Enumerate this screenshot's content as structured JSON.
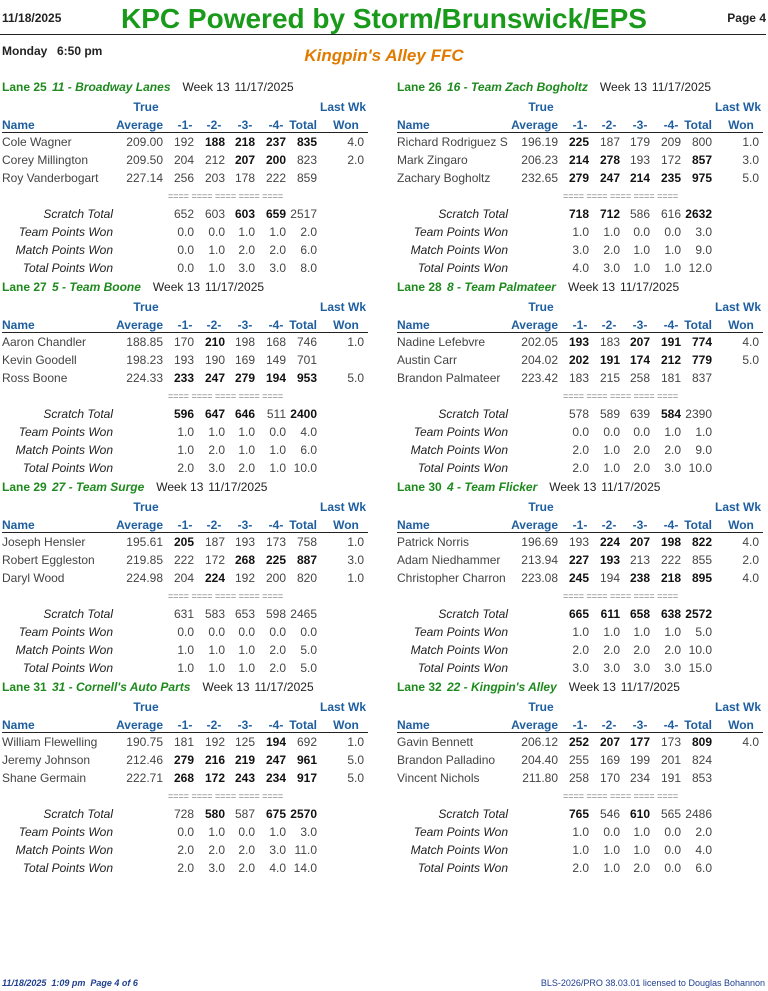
{
  "header": {
    "date": "11/18/2025",
    "title": "KPC Powered by Storm/Brunswick/EPS",
    "page": "Page 4",
    "day": "Monday",
    "time": "6:50 pm",
    "subtitle": "Kingpin's Alley FFC"
  },
  "column_headers": {
    "true": "True",
    "last_wk": "Last Wk",
    "name": "Name",
    "average": "Average",
    "g1": "-1-",
    "g2": "-2-",
    "g3": "-3-",
    "g4": "-4-",
    "total": "Total",
    "won": "Won"
  },
  "separator": "==== ==== ==== ==== ====",
  "summary_labels": [
    "Scratch Total",
    "Team Points Won",
    "Match Points Won",
    "Total Points Won"
  ],
  "matches": [
    {
      "lane": "Lane 25",
      "team": "11 - Broadway Lanes",
      "week": "Week 13",
      "date": "11/17/2025",
      "players": [
        {
          "cells": [
            "Cole Wagner",
            "209.00",
            "192",
            "188",
            "218",
            "237",
            "835",
            "4.0"
          ],
          "bold": [
            3,
            4,
            5,
            6
          ]
        },
        {
          "cells": [
            "Corey Millington",
            "209.50",
            "204",
            "212",
            "207",
            "200",
            "823",
            "2.0"
          ],
          "bold": [
            4,
            5
          ]
        },
        {
          "cells": [
            "Roy Vanderbogart",
            "227.14",
            "256",
            "203",
            "178",
            "222",
            "859"
          ],
          "bold": []
        }
      ],
      "summary": [
        [
          "652",
          "603",
          "603",
          "659",
          "2517"
        ],
        [
          "0.0",
          "0.0",
          "1.0",
          "1.0",
          "2.0"
        ],
        [
          "0.0",
          "1.0",
          "2.0",
          "2.0",
          "6.0"
        ],
        [
          "0.0",
          "1.0",
          "3.0",
          "3.0",
          "8.0"
        ]
      ],
      "summary_bold": [
        2,
        3
      ]
    },
    {
      "lane": "Lane 26",
      "team": "16 - Team Zach Bogholtz",
      "week": "Week 13",
      "date": "11/17/2025",
      "players": [
        {
          "cells": [
            "Richard Rodriguez S",
            "196.19",
            "225",
            "187",
            "179",
            "209",
            "800",
            "1.0"
          ],
          "bold": [
            2
          ]
        },
        {
          "cells": [
            "Mark Zingaro",
            "206.23",
            "214",
            "278",
            "193",
            "172",
            "857",
            "3.0"
          ],
          "bold": [
            2,
            3,
            6
          ]
        },
        {
          "cells": [
            "Zachary Bogholtz",
            "232.65",
            "279",
            "247",
            "214",
            "235",
            "975",
            "5.0"
          ],
          "bold": [
            2,
            3,
            4,
            5,
            6
          ]
        }
      ],
      "summary": [
        [
          "718",
          "712",
          "586",
          "616",
          "2632"
        ],
        [
          "1.0",
          "1.0",
          "0.0",
          "0.0",
          "3.0"
        ],
        [
          "3.0",
          "2.0",
          "1.0",
          "1.0",
          "9.0"
        ],
        [
          "4.0",
          "3.0",
          "1.0",
          "1.0",
          "12.0"
        ]
      ],
      "summary_bold": [
        0,
        1,
        4
      ]
    },
    {
      "lane": "Lane 27",
      "team": "5 - Team Boone",
      "week": "Week 13",
      "date": "11/17/2025",
      "players": [
        {
          "cells": [
            "Aaron Chandler",
            "188.85",
            "170",
            "210",
            "198",
            "168",
            "746",
            "1.0"
          ],
          "bold": [
            3
          ]
        },
        {
          "cells": [
            "Kevin Goodell",
            "198.23",
            "193",
            "190",
            "169",
            "149",
            "701"
          ],
          "bold": []
        },
        {
          "cells": [
            "Ross Boone",
            "224.33",
            "233",
            "247",
            "279",
            "194",
            "953",
            "5.0"
          ],
          "bold": [
            2,
            3,
            4,
            5,
            6
          ]
        }
      ],
      "summary": [
        [
          "596",
          "647",
          "646",
          "511",
          "2400"
        ],
        [
          "1.0",
          "1.0",
          "1.0",
          "0.0",
          "4.0"
        ],
        [
          "1.0",
          "2.0",
          "1.0",
          "1.0",
          "6.0"
        ],
        [
          "2.0",
          "3.0",
          "2.0",
          "1.0",
          "10.0"
        ]
      ],
      "summary_bold": [
        0,
        1,
        2,
        4
      ]
    },
    {
      "lane": "Lane 28",
      "team": "8 - Team Palmateer",
      "week": "Week 13",
      "date": "11/17/2025",
      "players": [
        {
          "cells": [
            "Nadine Lefebvre",
            "202.05",
            "193",
            "183",
            "207",
            "191",
            "774",
            "4.0"
          ],
          "bold": [
            2,
            4,
            5,
            6
          ]
        },
        {
          "cells": [
            "Austin Carr",
            "204.02",
            "202",
            "191",
            "174",
            "212",
            "779",
            "5.0"
          ],
          "bold": [
            2,
            3,
            4,
            5,
            6
          ]
        },
        {
          "cells": [
            "Brandon Palmateer",
            "223.42",
            "183",
            "215",
            "258",
            "181",
            "837"
          ],
          "bold": []
        }
      ],
      "summary": [
        [
          "578",
          "589",
          "639",
          "584",
          "2390"
        ],
        [
          "0.0",
          "0.0",
          "0.0",
          "1.0",
          "1.0"
        ],
        [
          "2.0",
          "1.0",
          "2.0",
          "2.0",
          "9.0"
        ],
        [
          "2.0",
          "1.0",
          "2.0",
          "3.0",
          "10.0"
        ]
      ],
      "summary_bold": [
        3
      ]
    },
    {
      "lane": "Lane 29",
      "team": "27 - Team Surge",
      "week": "Week 13",
      "date": "11/17/2025",
      "players": [
        {
          "cells": [
            "Joseph Hensler",
            "195.61",
            "205",
            "187",
            "193",
            "173",
            "758",
            "1.0"
          ],
          "bold": [
            2
          ]
        },
        {
          "cells": [
            "Robert Eggleston",
            "219.85",
            "222",
            "172",
            "268",
            "225",
            "887",
            "3.0"
          ],
          "bold": [
            4,
            5,
            6
          ]
        },
        {
          "cells": [
            "Daryl Wood",
            "224.98",
            "204",
            "224",
            "192",
            "200",
            "820",
            "1.0"
          ],
          "bold": [
            3
          ]
        }
      ],
      "summary": [
        [
          "631",
          "583",
          "653",
          "598",
          "2465"
        ],
        [
          "0.0",
          "0.0",
          "0.0",
          "0.0",
          "0.0"
        ],
        [
          "1.0",
          "1.0",
          "1.0",
          "2.0",
          "5.0"
        ],
        [
          "1.0",
          "1.0",
          "1.0",
          "2.0",
          "5.0"
        ]
      ],
      "summary_bold": []
    },
    {
      "lane": "Lane 30",
      "team": "4 - Team Flicker",
      "week": "Week 13",
      "date": "11/17/2025",
      "players": [
        {
          "cells": [
            "Patrick Norris",
            "196.69",
            "193",
            "224",
            "207",
            "198",
            "822",
            "4.0"
          ],
          "bold": [
            3,
            4,
            5,
            6
          ]
        },
        {
          "cells": [
            "Adam Niedhammer",
            "213.94",
            "227",
            "193",
            "213",
            "222",
            "855",
            "2.0"
          ],
          "bold": [
            2,
            3
          ]
        },
        {
          "cells": [
            "Christopher Charron",
            "223.08",
            "245",
            "194",
            "238",
            "218",
            "895",
            "4.0"
          ],
          "bold": [
            2,
            4,
            5,
            6
          ]
        }
      ],
      "summary": [
        [
          "665",
          "611",
          "658",
          "638",
          "2572"
        ],
        [
          "1.0",
          "1.0",
          "1.0",
          "1.0",
          "5.0"
        ],
        [
          "2.0",
          "2.0",
          "2.0",
          "2.0",
          "10.0"
        ],
        [
          "3.0",
          "3.0",
          "3.0",
          "3.0",
          "15.0"
        ]
      ],
      "summary_bold": [
        0,
        1,
        2,
        3,
        4
      ]
    },
    {
      "lane": "Lane 31",
      "team": "31 - Cornell's Auto Parts",
      "week": "Week 13",
      "date": "11/17/2025",
      "players": [
        {
          "cells": [
            "William Flewelling",
            "190.75",
            "181",
            "192",
            "125",
            "194",
            "692",
            "1.0"
          ],
          "bold": [
            5
          ]
        },
        {
          "cells": [
            "Jeremy Johnson",
            "212.46",
            "279",
            "216",
            "219",
            "247",
            "961",
            "5.0"
          ],
          "bold": [
            2,
            3,
            4,
            5,
            6
          ]
        },
        {
          "cells": [
            "Shane Germain",
            "222.71",
            "268",
            "172",
            "243",
            "234",
            "917",
            "5.0"
          ],
          "bold": [
            2,
            3,
            4,
            5,
            6
          ]
        }
      ],
      "summary": [
        [
          "728",
          "580",
          "587",
          "675",
          "2570"
        ],
        [
          "0.0",
          "1.0",
          "0.0",
          "1.0",
          "3.0"
        ],
        [
          "2.0",
          "2.0",
          "2.0",
          "3.0",
          "11.0"
        ],
        [
          "2.0",
          "3.0",
          "2.0",
          "4.0",
          "14.0"
        ]
      ],
      "summary_bold": [
        1,
        3,
        4
      ]
    },
    {
      "lane": "Lane 32",
      "team": "22 - Kingpin's Alley",
      "week": "Week 13",
      "date": "11/17/2025",
      "players": [
        {
          "cells": [
            "Gavin Bennett",
            "206.12",
            "252",
            "207",
            "177",
            "173",
            "809",
            "4.0"
          ],
          "bold": [
            2,
            3,
            4,
            6
          ]
        },
        {
          "cells": [
            "Brandon Palladino",
            "204.40",
            "255",
            "169",
            "199",
            "201",
            "824"
          ],
          "bold": []
        },
        {
          "cells": [
            "Vincent Nichols",
            "211.80",
            "258",
            "170",
            "234",
            "191",
            "853"
          ],
          "bold": []
        }
      ],
      "summary": [
        [
          "765",
          "546",
          "610",
          "565",
          "2486"
        ],
        [
          "1.0",
          "0.0",
          "1.0",
          "0.0",
          "2.0"
        ],
        [
          "1.0",
          "1.0",
          "1.0",
          "0.0",
          "4.0"
        ],
        [
          "2.0",
          "1.0",
          "2.0",
          "0.0",
          "6.0"
        ]
      ],
      "summary_bold": [
        0,
        2
      ]
    }
  ],
  "footer": {
    "left": "11/18/2025  1:09 pm  Page 4 of 6",
    "right": "BLS-2026/PRO 38.03.01 licensed to Douglas Bohannon"
  }
}
